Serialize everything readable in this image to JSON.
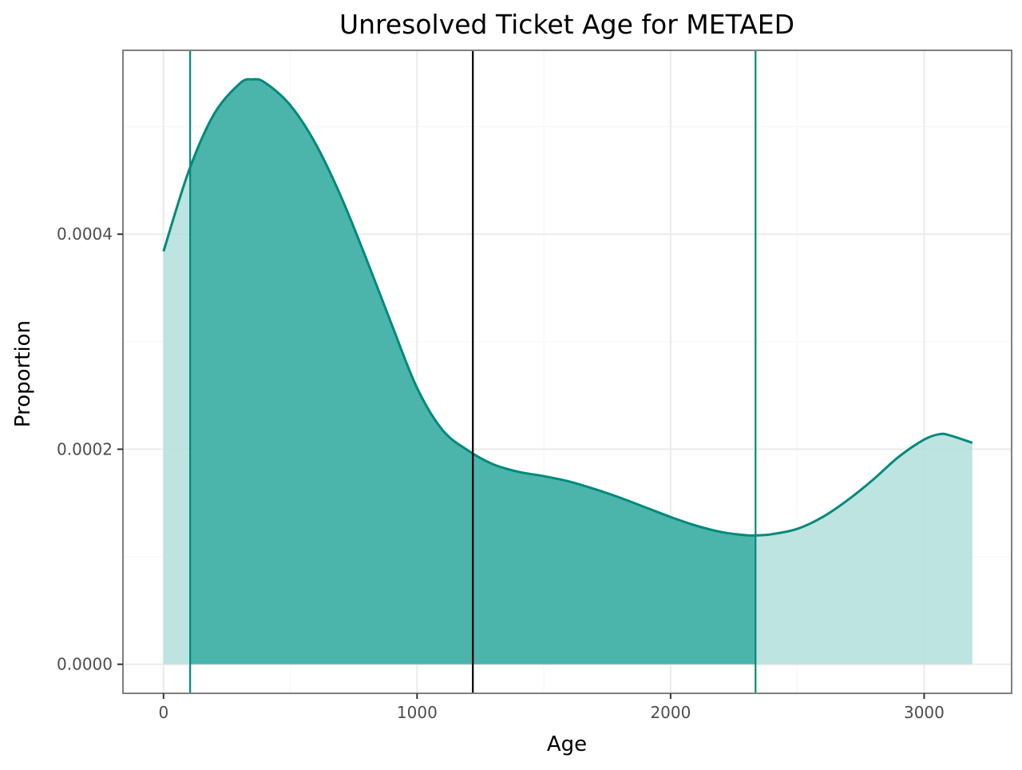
{
  "chart_data": {
    "type": "area",
    "title": "Unresolved Ticket Age for METAED",
    "xlabel": "Age",
    "ylabel": "Proportion",
    "xlim": [
      -160,
      3345
    ],
    "ylim": [
      -2.7e-05,
      0.000571
    ],
    "x_ticks": [
      0,
      1000,
      2000,
      3000
    ],
    "x_tick_labels": [
      "0",
      "1000",
      "2000",
      "3000"
    ],
    "y_ticks": [
      0,
      0.0002,
      0.0004
    ],
    "y_tick_labels": [
      "0.0000",
      "0.0002",
      "0.0004"
    ],
    "grid": true,
    "legend": "none",
    "colors": {
      "curve": "#00897B",
      "band_fill": "#26A69A",
      "tail_fill": "#B2DFDB",
      "median_line": "#000000",
      "panel_border": "#7f7f7f",
      "grid_major": "#ebebeb",
      "grid_minor": "#f5f5f5"
    },
    "series": [
      {
        "x": [
          0,
          100,
          200,
          300,
          350,
          400,
          500,
          600,
          700,
          800,
          900,
          1000,
          1100,
          1200,
          1300,
          1400,
          1500,
          1600,
          1700,
          1800,
          1900,
          2000,
          2100,
          2200,
          2300,
          2350,
          2400,
          2500,
          2600,
          2700,
          2800,
          2900,
          3000,
          3060,
          3100,
          3190
        ],
        "y": [
          0.000384,
          0.000459,
          0.000512,
          0.00054,
          0.000544,
          0.000541,
          0.00052,
          0.000484,
          0.000435,
          0.000377,
          0.000316,
          0.000257,
          0.000218,
          0.000199,
          0.000186,
          0.000179,
          0.000175,
          0.00017,
          0.000163,
          0.000155,
          0.000146,
          0.000137,
          0.000129,
          0.000123,
          0.00012,
          0.00012,
          0.000121,
          0.000126,
          0.000137,
          0.000153,
          0.000172,
          0.000193,
          0.000209,
          0.000214,
          0.000213,
          0.000206
        ]
      }
    ],
    "reference_lines": [
      {
        "x": 105,
        "color": "#00897B"
      },
      {
        "x": 1220,
        "color": "#000000"
      },
      {
        "x": 2335,
        "color": "#00897B"
      }
    ],
    "shaded_interval": [
      105,
      2335
    ]
  }
}
